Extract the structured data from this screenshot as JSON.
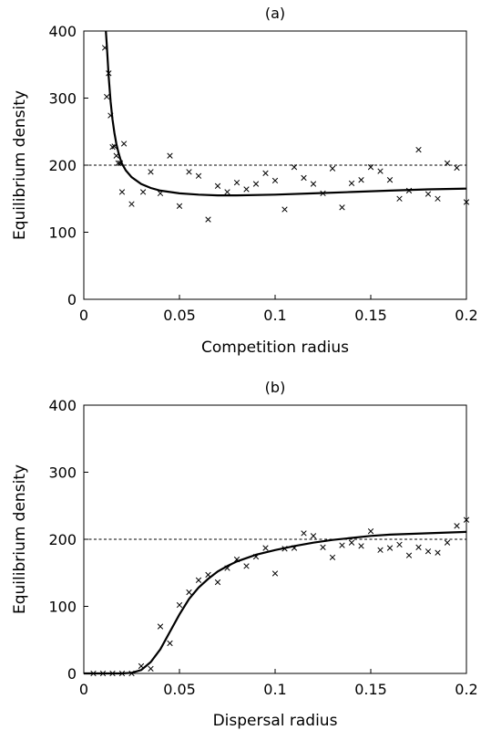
{
  "chart_data": [
    {
      "type": "scatter",
      "title": "(a)",
      "xlabel": "Competition radius",
      "ylabel": "Equilibrium density",
      "xlim": [
        0,
        0.2
      ],
      "ylim": [
        0,
        400
      ],
      "xticks": [
        0,
        0.05,
        0.1,
        0.15,
        0.2
      ],
      "xtick_labels": [
        "0",
        "0.05",
        "0.1",
        "0.15",
        "0.2"
      ],
      "yticks": [
        0,
        100,
        200,
        300,
        400
      ],
      "ytick_labels": [
        "0",
        "100",
        "200",
        "300",
        "400"
      ],
      "grid": false,
      "reference_line": {
        "y": 200,
        "style": "dashed"
      },
      "series": [
        {
          "style": "x-markers",
          "points": [
            [
              0.011,
              375
            ],
            [
              0.012,
              302
            ],
            [
              0.013,
              337
            ],
            [
              0.014,
              274
            ],
            [
              0.015,
              227
            ],
            [
              0.016,
              228
            ],
            [
              0.017,
              214
            ],
            [
              0.018,
              203
            ],
            [
              0.019,
              203
            ],
            [
              0.02,
              160
            ],
            [
              0.021,
              232
            ],
            [
              0.025,
              142
            ],
            [
              0.031,
              160
            ],
            [
              0.035,
              190
            ],
            [
              0.04,
              158
            ],
            [
              0.045,
              214
            ],
            [
              0.05,
              139
            ],
            [
              0.055,
              190
            ],
            [
              0.06,
              184
            ],
            [
              0.065,
              119
            ],
            [
              0.07,
              169
            ],
            [
              0.075,
              160
            ],
            [
              0.08,
              174
            ],
            [
              0.085,
              164
            ],
            [
              0.09,
              172
            ],
            [
              0.095,
              188
            ],
            [
              0.1,
              177
            ],
            [
              0.105,
              134
            ],
            [
              0.11,
              197
            ],
            [
              0.115,
              181
            ],
            [
              0.12,
              172
            ],
            [
              0.125,
              158
            ],
            [
              0.13,
              195
            ],
            [
              0.135,
              137
            ],
            [
              0.14,
              173
            ],
            [
              0.145,
              178
            ],
            [
              0.15,
              197
            ],
            [
              0.155,
              191
            ],
            [
              0.16,
              178
            ],
            [
              0.165,
              150
            ],
            [
              0.17,
              162
            ],
            [
              0.175,
              223
            ],
            [
              0.18,
              157
            ],
            [
              0.185,
              150
            ],
            [
              0.19,
              203
            ],
            [
              0.195,
              196
            ],
            [
              0.2,
              145
            ]
          ]
        },
        {
          "style": "solid-line",
          "points": [
            [
              0.0115,
              400
            ],
            [
              0.012,
              380
            ],
            [
              0.013,
              332
            ],
            [
              0.014,
              295
            ],
            [
              0.015,
              268
            ],
            [
              0.016,
              248
            ],
            [
              0.017,
              232
            ],
            [
              0.018,
              220
            ],
            [
              0.019,
              210
            ],
            [
              0.02,
              202
            ],
            [
              0.022,
              192
            ],
            [
              0.025,
              182
            ],
            [
              0.03,
              172
            ],
            [
              0.035,
              166
            ],
            [
              0.04,
              162
            ],
            [
              0.05,
              158
            ],
            [
              0.06,
              156
            ],
            [
              0.07,
              155
            ],
            [
              0.08,
              155
            ],
            [
              0.1,
              156
            ],
            [
              0.12,
              158
            ],
            [
              0.14,
              160
            ],
            [
              0.16,
              162
            ],
            [
              0.18,
              164
            ],
            [
              0.2,
              165
            ]
          ]
        }
      ]
    },
    {
      "type": "scatter",
      "title": "(b)",
      "xlabel": "Dispersal radius",
      "ylabel": "Equilibrium density",
      "xlim": [
        0,
        0.2
      ],
      "ylim": [
        0,
        400
      ],
      "xticks": [
        0,
        0.05,
        0.1,
        0.15,
        0.2
      ],
      "xtick_labels": [
        "0",
        "0.05",
        "0.1",
        "0.15",
        "0.2"
      ],
      "yticks": [
        0,
        100,
        200,
        300,
        400
      ],
      "ytick_labels": [
        "0",
        "100",
        "200",
        "300",
        "400"
      ],
      "grid": false,
      "reference_line": {
        "y": 200,
        "style": "dashed"
      },
      "series": [
        {
          "style": "x-markers",
          "points": [
            [
              0.005,
              0
            ],
            [
              0.01,
              0
            ],
            [
              0.015,
              0
            ],
            [
              0.02,
              0
            ],
            [
              0.025,
              0
            ],
            [
              0.03,
              11
            ],
            [
              0.035,
              7
            ],
            [
              0.04,
              70
            ],
            [
              0.045,
              45
            ],
            [
              0.05,
              102
            ],
            [
              0.055,
              121
            ],
            [
              0.06,
              139
            ],
            [
              0.065,
              147
            ],
            [
              0.07,
              136
            ],
            [
              0.075,
              157
            ],
            [
              0.08,
              170
            ],
            [
              0.085,
              160
            ],
            [
              0.09,
              174
            ],
            [
              0.095,
              187
            ],
            [
              0.1,
              149
            ],
            [
              0.105,
              186
            ],
            [
              0.11,
              187
            ],
            [
              0.115,
              209
            ],
            [
              0.12,
              205
            ],
            [
              0.125,
              188
            ],
            [
              0.13,
              173
            ],
            [
              0.135,
              191
            ],
            [
              0.14,
              195
            ],
            [
              0.145,
              190
            ],
            [
              0.15,
              212
            ],
            [
              0.155,
              184
            ],
            [
              0.16,
              187
            ],
            [
              0.165,
              192
            ],
            [
              0.17,
              176
            ],
            [
              0.175,
              188
            ],
            [
              0.18,
              182
            ],
            [
              0.185,
              180
            ],
            [
              0.19,
              195
            ],
            [
              0.195,
              220
            ],
            [
              0.2,
              229
            ]
          ]
        },
        {
          "style": "solid-line",
          "points": [
            [
              0.0,
              0
            ],
            [
              0.02,
              0
            ],
            [
              0.025,
              1
            ],
            [
              0.03,
              5
            ],
            [
              0.035,
              17
            ],
            [
              0.04,
              36
            ],
            [
              0.045,
              62
            ],
            [
              0.05,
              88
            ],
            [
              0.055,
              111
            ],
            [
              0.06,
              128
            ],
            [
              0.065,
              141
            ],
            [
              0.07,
              152
            ],
            [
              0.075,
              160
            ],
            [
              0.08,
              167
            ],
            [
              0.09,
              177
            ],
            [
              0.1,
              184
            ],
            [
              0.11,
              190
            ],
            [
              0.12,
              195
            ],
            [
              0.13,
              199
            ],
            [
              0.14,
              202
            ],
            [
              0.15,
              205
            ],
            [
              0.16,
              207
            ],
            [
              0.17,
              208
            ],
            [
              0.18,
              209
            ],
            [
              0.19,
              210
            ],
            [
              0.2,
              211
            ]
          ]
        }
      ]
    }
  ]
}
